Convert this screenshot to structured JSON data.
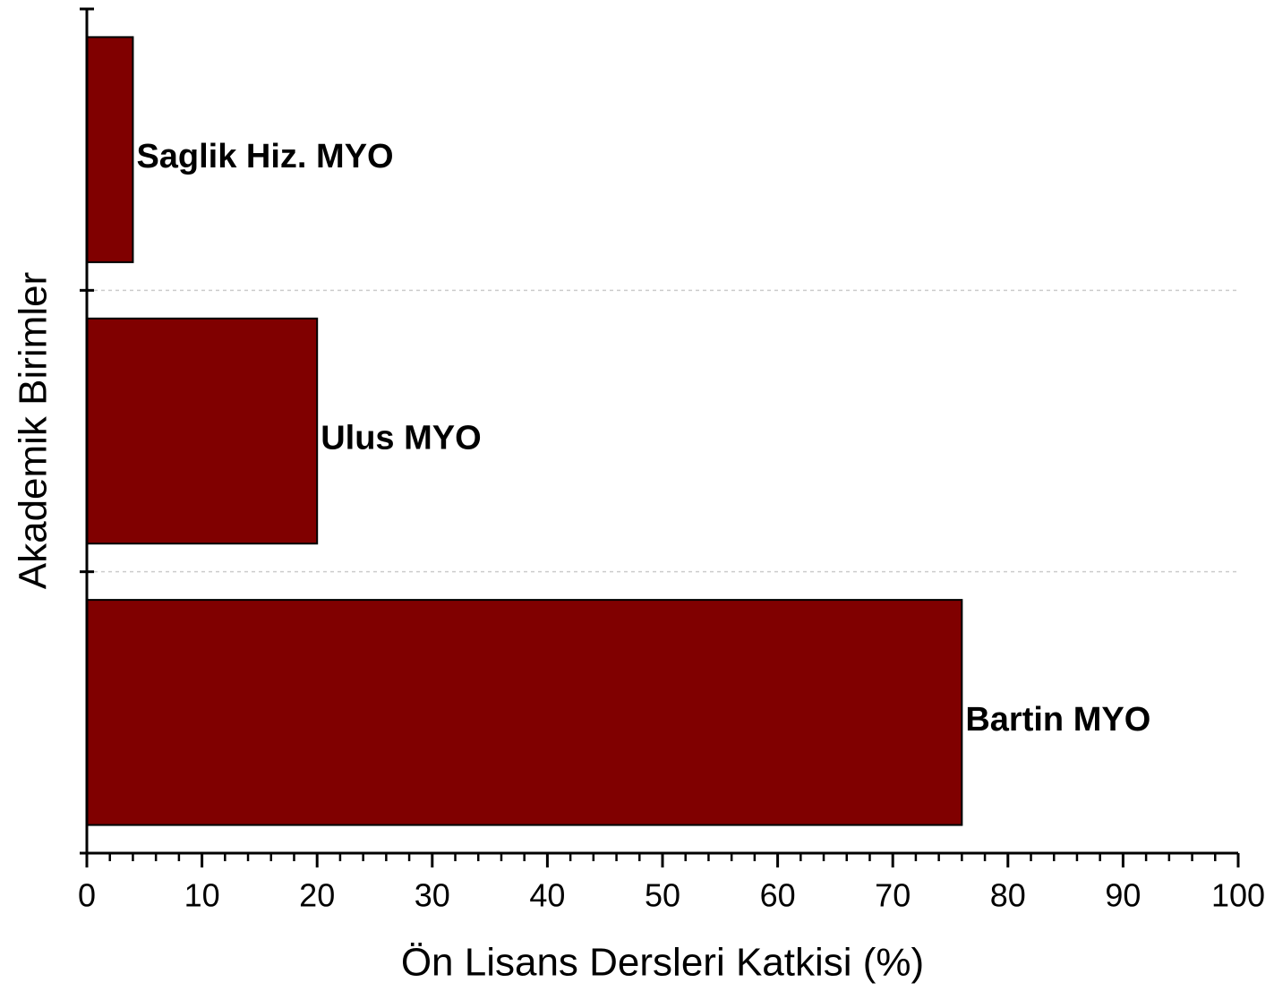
{
  "chart_data": {
    "type": "hbar",
    "x_label": "Ön Lisans Dersleri Katkisi (%)",
    "y_label": "Akademik Birimler",
    "categories": [
      "Saglik Hiz. MYO",
      "Ulus MYO",
      "Bartin MYO"
    ],
    "values": [
      4,
      20,
      76
    ],
    "color": "#800000",
    "xlim": [
      0,
      100
    ],
    "xticks": [
      0,
      10,
      20,
      30,
      40,
      50,
      60,
      70,
      80,
      90,
      100
    ],
    "grid": true
  }
}
